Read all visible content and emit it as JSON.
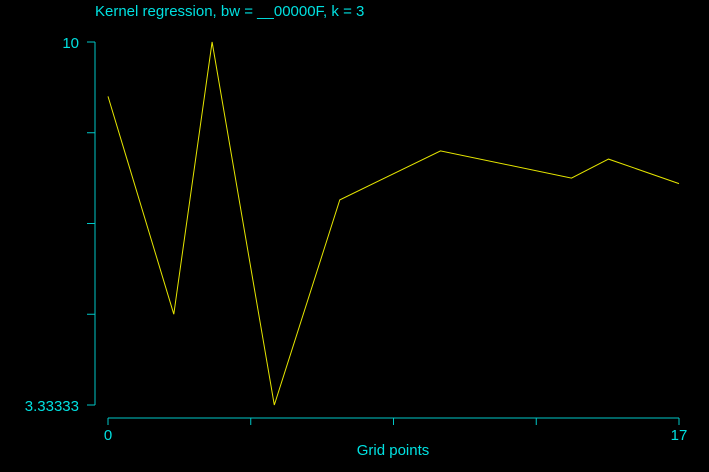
{
  "colors": {
    "background": "#000000",
    "axis": "#00c8c8",
    "text": "#00e0e0",
    "series": "#e6e600"
  },
  "chart_data": {
    "type": "line",
    "title": "Kernel regression, bw = __00000F, k = 3",
    "xlabel": "Grid points",
    "ylabel": "",
    "xlim": [
      0,
      17
    ],
    "ylim": [
      3.33333,
      10
    ],
    "x_tick_labels": [
      "0",
      "17"
    ],
    "y_tick_labels": [
      "10",
      "3.33333"
    ],
    "series": [
      {
        "x": [
          0,
          1.96,
          3.1,
          4.95,
          6.9,
          9.9,
          13.8,
          14.9,
          17
        ],
        "values": [
          9.0,
          5.0,
          10.0,
          3.33333,
          7.1,
          8.0,
          7.5,
          7.85,
          7.4
        ]
      }
    ]
  }
}
